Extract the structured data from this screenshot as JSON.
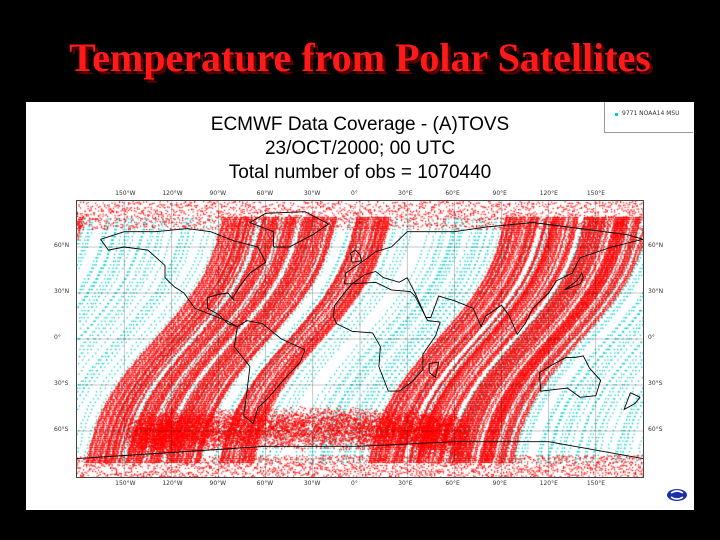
{
  "slide": {
    "title": "Temperature from Polar Satellites"
  },
  "map": {
    "header_line1": "ECMWF Data Coverage  - (A)TOVS",
    "header_line2": "23/OCT/2000; 00 UTC",
    "header_line3": "Total number of obs  = 1070440",
    "legend_entries": [
      {
        "label": "9771 NOAA14 MSU",
        "color": "#00cccc"
      }
    ],
    "lon_labels": [
      "150°W",
      "120°W",
      "90°W",
      "60°W",
      "30°W",
      "0°",
      "30°E",
      "60°E",
      "90°E",
      "120°E",
      "150°E"
    ],
    "lat_labels": [
      "60°N",
      "30°N",
      "0°",
      "30°S",
      "60°S"
    ],
    "lon_values": [
      -150,
      -120,
      -90,
      -60,
      -30,
      0,
      30,
      60,
      90,
      120,
      150
    ],
    "lat_values": [
      60,
      30,
      0,
      -30,
      -60
    ],
    "lon_range": [
      -180,
      180
    ],
    "lat_range": [
      -90,
      90
    ],
    "colors": {
      "primary_obs": "#ff0000",
      "secondary_obs": "#00cccc",
      "coastline": "#000000",
      "grid": "#000000"
    }
  }
}
